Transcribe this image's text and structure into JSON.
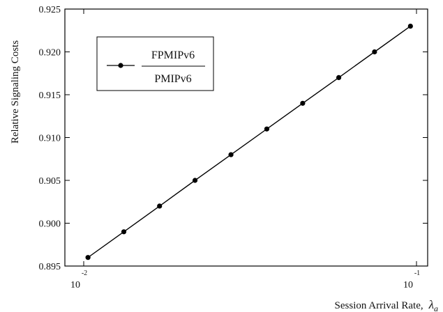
{
  "chart_data": {
    "type": "line",
    "title": "",
    "xlabel": "Session Arrival Rate,",
    "xlabel_symbol": "λ",
    "xlabel_symbol_sub": "a",
    "ylabel": "Relative Signaling Costs",
    "x_scale": "log",
    "xlim": [
      0.01,
      0.1
    ],
    "ylim": [
      0.895,
      0.925
    ],
    "grid": false,
    "legend_position": "top-left",
    "x_ticks": [
      {
        "base": "10",
        "exp": "-2",
        "value": 0.01
      },
      {
        "base": "10",
        "exp": "-1",
        "value": 0.1
      }
    ],
    "y_ticks": [
      {
        "label": "0.895",
        "value": 0.895
      },
      {
        "label": "0.900",
        "value": 0.9
      },
      {
        "label": "0.905",
        "value": 0.905
      },
      {
        "label": "0.910",
        "value": 0.91
      },
      {
        "label": "0.915",
        "value": 0.915
      },
      {
        "label": "0.920",
        "value": 0.92
      },
      {
        "label": "0.925",
        "value": 0.925
      }
    ],
    "legend": {
      "numerator": "FPMIPv6",
      "denominator": "PMIPv6"
    },
    "series": [
      {
        "name": "FPMIPv6 / PMIPv6",
        "color": "#000000",
        "marker": "circle",
        "x": [
          0.0103,
          0.0132,
          0.0169,
          0.0216,
          0.0277,
          0.0355,
          0.0455,
          0.0584,
          0.0748,
          0.0959
        ],
        "y": [
          0.896,
          0.899,
          0.902,
          0.905,
          0.908,
          0.911,
          0.914,
          0.917,
          0.92,
          0.923
        ]
      }
    ]
  }
}
